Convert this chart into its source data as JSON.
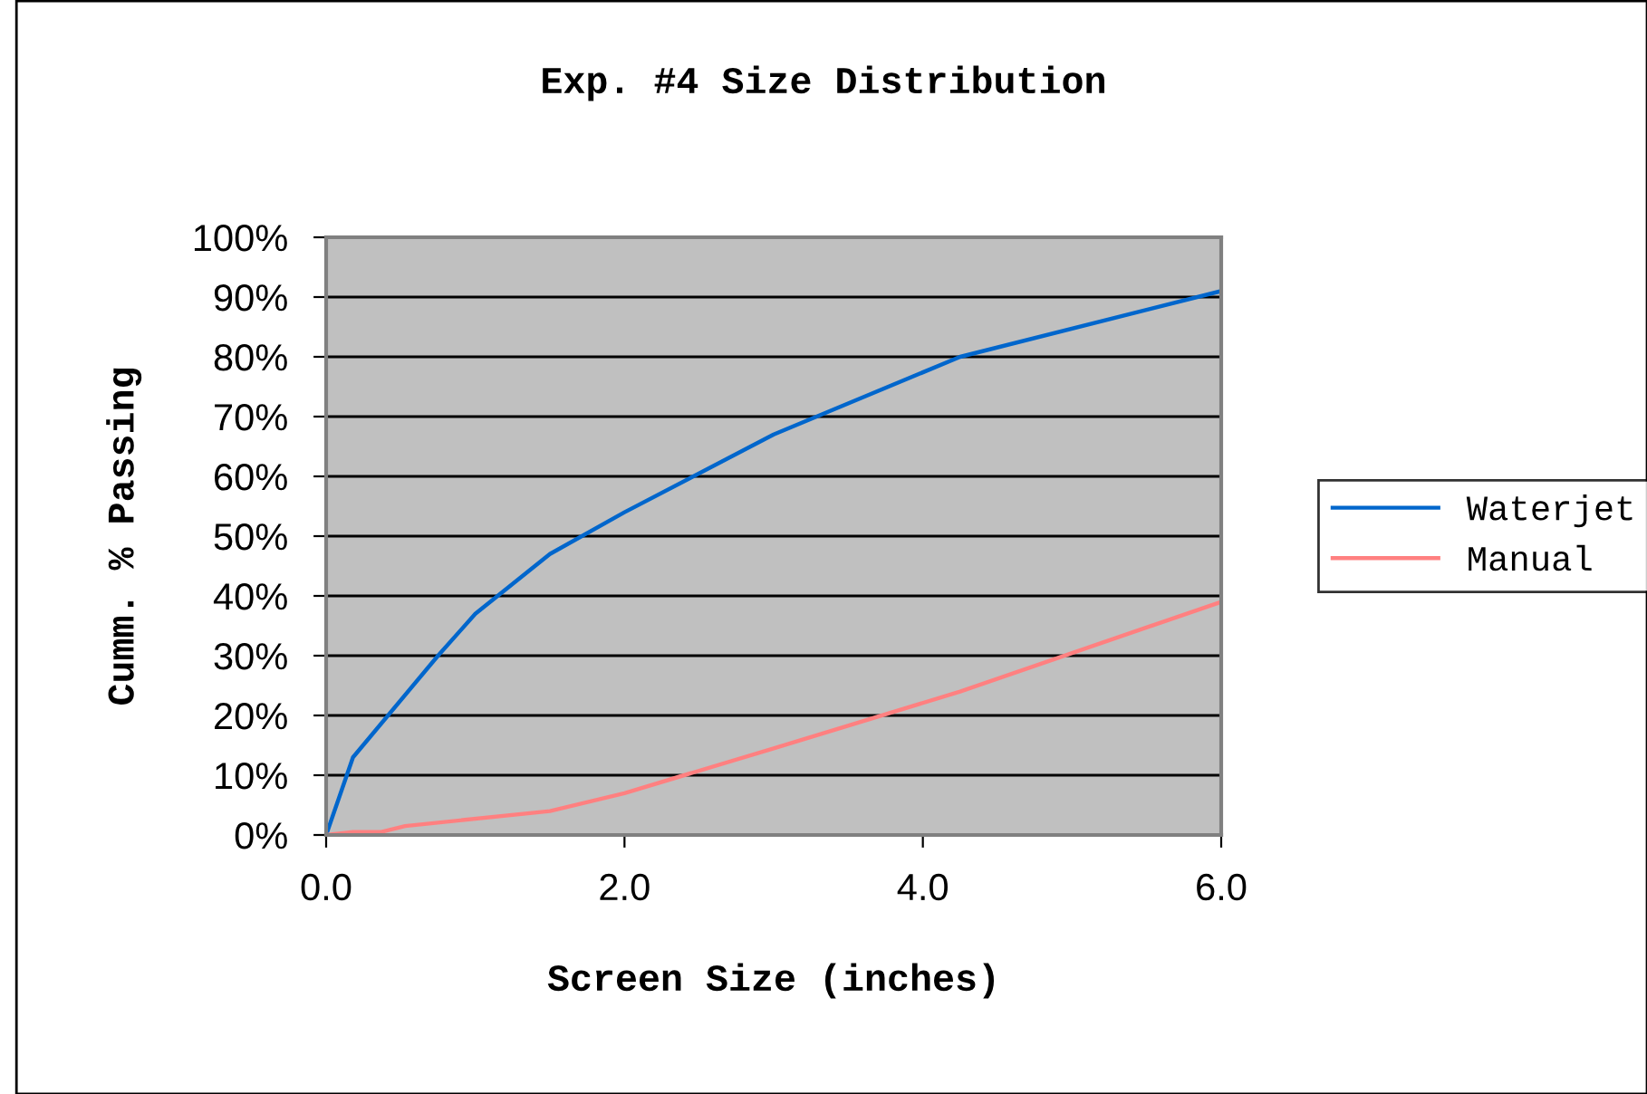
{
  "chart_data": {
    "type": "line",
    "title": "Exp. #4 Size Distribution",
    "xlabel": "Screen Size (inches)",
    "ylabel": "Cumm. % Passing",
    "xlim": [
      0,
      6
    ],
    "xticks": [
      {
        "value": 0,
        "label": "0.0"
      },
      {
        "value": 2,
        "label": "2.0"
      },
      {
        "value": 4,
        "label": "4.0"
      },
      {
        "value": 6,
        "label": "6.0"
      }
    ],
    "ylim": [
      0,
      100
    ],
    "yticks": [
      {
        "value": 0,
        "label": "0%"
      },
      {
        "value": 10,
        "label": "10%"
      },
      {
        "value": 20,
        "label": "20%"
      },
      {
        "value": 30,
        "label": "30%"
      },
      {
        "value": 40,
        "label": "40%"
      },
      {
        "value": 50,
        "label": "50%"
      },
      {
        "value": 60,
        "label": "60%"
      },
      {
        "value": 70,
        "label": "70%"
      },
      {
        "value": 80,
        "label": "80%"
      },
      {
        "value": 90,
        "label": "90%"
      },
      {
        "value": 100,
        "label": "100%"
      }
    ],
    "grid": "y",
    "legend": "right",
    "marker": "none",
    "line_style": "solid",
    "series": [
      {
        "name": "Waterjet",
        "color": "#0066cc",
        "x": [
          0,
          0.18,
          0.75,
          1.0,
          1.5,
          2.0,
          3.0,
          4.25,
          6.0
        ],
        "values": [
          0,
          13,
          30,
          37,
          47,
          54,
          67,
          80,
          91
        ]
      },
      {
        "name": "Manual",
        "color": "#ff8080",
        "x": [
          0,
          0.18,
          0.37,
          0.53,
          1.5,
          2.0,
          2.4,
          3.0,
          4.25,
          6.0
        ],
        "values": [
          0,
          0.5,
          0.5,
          1.5,
          4,
          7,
          10,
          14.5,
          24,
          39
        ]
      }
    ]
  }
}
